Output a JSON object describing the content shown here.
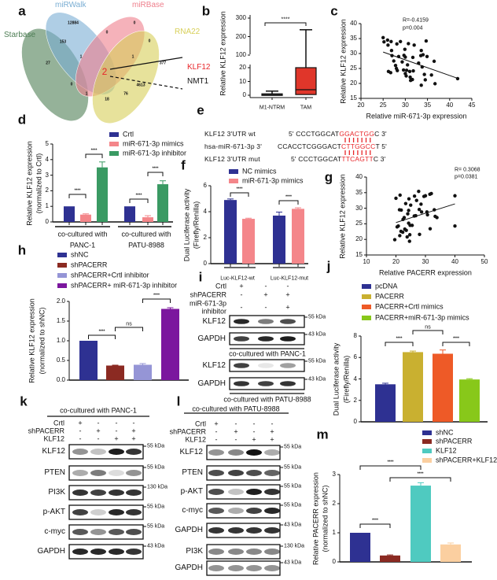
{
  "panel_labels": [
    "a",
    "b",
    "c",
    "d",
    "e",
    "f",
    "g",
    "h",
    "i",
    "j",
    "k",
    "l",
    "m"
  ],
  "venn": {
    "sets": [
      {
        "name": "Starbase",
        "color": "#4e7e55"
      },
      {
        "name": "miRWalk",
        "color": "#7aaed3"
      },
      {
        "name": "miRBase",
        "color": "#ee7f8c"
      },
      {
        "name": "RNA22",
        "color": "#d7cf58"
      }
    ],
    "regions": [
      "12884",
      "0",
      "0",
      "153",
      "0",
      "27",
      "1",
      "1",
      "2",
      "377",
      "0",
      "4613",
      "1",
      "76",
      "18"
    ],
    "callouts": [
      "KLF12",
      "NMT1"
    ]
  },
  "sequences": {
    "rows": [
      {
        "label": "KLF12 3'UTR wt",
        "prefix": "5' CCCTGGCAT",
        "site": "GGACTGG",
        "suffix": "C 3'"
      },
      {
        "label": "hsa-miR-671-3p  3'",
        "prefix": "CCACCTCGGGACT",
        "site": "CTTGGCC",
        "suffix": "T 5'"
      },
      {
        "label": "KLF12 3'UTR mut",
        "prefix": "5' CCCTGGCAT",
        "site": "TTCAGTT",
        "suffix": "C 3'"
      }
    ]
  },
  "chart_data": [
    {
      "panel": "b",
      "type": "box",
      "categories": [
        "M1-NTRM",
        "TAM"
      ],
      "ylabel": "Relative KLF12 expression",
      "yticks": [
        0,
        10,
        20,
        100,
        200,
        300
      ],
      "ylim": [
        0,
        300
      ],
      "axis_break": [
        20,
        100
      ],
      "boxes": [
        {
          "min": 0,
          "q1": 0,
          "median": 0.5,
          "q3": 1,
          "max": 3
        },
        {
          "min": 0,
          "q1": 0.5,
          "median": 4,
          "q3": 20,
          "max": 237
        }
      ],
      "colors": [
        "#ffffff",
        "#e0362a"
      ],
      "significance": "****"
    },
    {
      "panel": "c",
      "type": "scatter",
      "xlabel": "Relative miR-671-3p expression",
      "ylabel": "Relative KLF12 expression",
      "xlim": [
        20,
        45
      ],
      "ylim": [
        15,
        40
      ],
      "xticks": [
        20,
        25,
        30,
        35,
        40,
        45
      ],
      "yticks": [
        15,
        20,
        25,
        30,
        35,
        40
      ],
      "annotation": [
        "R=-0.4159",
        "p=0.004"
      ],
      "fit": [
        [
          25,
          30.5
        ],
        [
          42,
          21.6
        ]
      ],
      "points": [
        [
          25,
          35.3
        ],
        [
          25.2,
          33.9
        ],
        [
          26,
          34.5
        ],
        [
          26.1,
          32.8
        ],
        [
          26.8,
          34
        ],
        [
          26.9,
          31
        ],
        [
          27,
          29.3
        ],
        [
          27.4,
          27.5
        ],
        [
          27.8,
          26
        ],
        [
          28,
          25
        ],
        [
          28.2,
          24.3
        ],
        [
          28.1,
          33.2
        ],
        [
          28.5,
          29
        ],
        [
          28.9,
          34
        ],
        [
          29.3,
          27.2
        ],
        [
          29.6,
          24.5
        ],
        [
          29.7,
          29.4
        ],
        [
          29.9,
          31.4
        ],
        [
          30,
          28.8
        ],
        [
          30,
          23.3
        ],
        [
          30.2,
          22.5
        ],
        [
          30.3,
          24.4
        ],
        [
          30.5,
          26.2
        ],
        [
          30.7,
          33.3
        ],
        [
          31,
          24
        ],
        [
          31.1,
          22.1
        ],
        [
          31.2,
          21
        ],
        [
          31.6,
          21.3
        ],
        [
          31.7,
          28.7
        ],
        [
          31.8,
          24.2
        ],
        [
          32,
          32.8
        ],
        [
          33,
          26.8
        ],
        [
          33.5,
          29.3
        ],
        [
          33.6,
          31
        ],
        [
          33.8,
          25.5
        ],
        [
          33.6,
          19.4
        ],
        [
          34,
          29.6
        ],
        [
          34.3,
          23
        ],
        [
          34.5,
          21.2
        ],
        [
          34.7,
          34.2
        ],
        [
          34.9,
          29
        ],
        [
          35.9,
          22.8
        ],
        [
          36.5,
          27.4
        ],
        [
          36.7,
          19.9
        ],
        [
          26.2,
          24
        ],
        [
          26.7,
          23.6
        ],
        [
          41.8,
          21.6
        ]
      ]
    },
    {
      "panel": "d",
      "type": "bar",
      "ylabel": [
        "Relative KLF12 expression",
        "(normalized to Crtl)"
      ],
      "categories": [
        [
          "co-cultured with",
          "PANC-1"
        ],
        [
          "co-cultured with",
          "PATU-8988"
        ]
      ],
      "yticks": [
        0,
        1,
        2,
        3,
        4,
        5
      ],
      "ylim": [
        0,
        5
      ],
      "series": [
        {
          "name": "Crtl",
          "color": "#2e3192",
          "values": [
            1,
            1
          ],
          "errors": [
            0,
            0
          ]
        },
        {
          "name": "miR-671-3p mimics",
          "color": "#f4868a",
          "values": [
            0.47,
            0.3
          ],
          "errors": [
            0.05,
            0.1
          ]
        },
        {
          "name": "miR-671-3p inhibitor",
          "color": "#3a9a63",
          "values": [
            3.5,
            2.42
          ],
          "errors": [
            0.35,
            0.22
          ]
        }
      ],
      "comparisons": [
        {
          "bars": [
            0,
            1
          ],
          "label": "****"
        },
        {
          "bars": [
            1,
            2
          ],
          "label": "****"
        },
        {
          "bars": [
            3,
            4
          ],
          "label": "****"
        },
        {
          "bars": [
            4,
            5
          ],
          "label": "****"
        }
      ]
    },
    {
      "panel": "f",
      "type": "bar",
      "ylabel": [
        "Dual Luciferase activity",
        "(Firefly/Renilla)"
      ],
      "categories": [
        "Luc-KLF12-wt",
        "Luc-KLF12-mut"
      ],
      "yticks": [
        0,
        2,
        4,
        6
      ],
      "ylim": [
        0,
        6
      ],
      "series": [
        {
          "name": "NC mimics",
          "color": "#2e3192",
          "values": [
            4.9,
            3.7
          ],
          "errors": [
            0.08,
            0.27
          ]
        },
        {
          "name": "miR-671-3p mimics",
          "color": "#f4868a",
          "values": [
            3.45,
            4.22
          ],
          "errors": [
            0.05,
            0.08
          ]
        }
      ],
      "comparisons": [
        {
          "bars": [
            0,
            1
          ],
          "label": "****"
        },
        {
          "bars": [
            2,
            3
          ],
          "label": "****"
        }
      ]
    },
    {
      "panel": "g",
      "type": "scatter",
      "xlabel": "Relative PACERR expression",
      "ylabel": "Relative KLF12 expression",
      "xlim": [
        10,
        50
      ],
      "ylim": [
        15,
        40
      ],
      "xticks": [
        10,
        20,
        30,
        40,
        50
      ],
      "yticks": [
        15,
        20,
        25,
        30,
        35,
        40
      ],
      "annotation": [
        "R= 0.3068",
        "p=0.0381"
      ],
      "fit": [
        [
          20,
          25.4
        ],
        [
          40,
          31.4
        ]
      ],
      "points": [
        [
          19.6,
          19.9
        ],
        [
          20,
          33.2
        ],
        [
          20.4,
          24
        ],
        [
          20.8,
          24.3
        ],
        [
          21.2,
          29.5
        ],
        [
          21.3,
          21.2
        ],
        [
          21.4,
          34.2
        ],
        [
          21.7,
          22.6
        ],
        [
          21.8,
          29.4
        ],
        [
          22.3,
          22.3
        ],
        [
          22.4,
          26.4
        ],
        [
          22.8,
          27
        ],
        [
          23,
          23.3
        ],
        [
          23.3,
          31.5
        ],
        [
          23.5,
          22.9
        ],
        [
          23.8,
          20.8
        ],
        [
          24,
          28.2
        ],
        [
          24.3,
          25.2
        ],
        [
          24.3,
          29.3
        ],
        [
          24.4,
          33
        ],
        [
          24.6,
          19.4
        ],
        [
          24.7,
          21.5
        ],
        [
          24.8,
          24.5
        ],
        [
          25,
          31
        ],
        [
          25.5,
          24.5
        ],
        [
          26.3,
          33.9
        ],
        [
          26.7,
          27.6
        ],
        [
          27,
          32.5
        ],
        [
          27.7,
          35.4
        ],
        [
          27.9,
          29.6
        ],
        [
          28,
          21.6
        ],
        [
          28.5,
          31.3
        ],
        [
          28.7,
          28.8
        ],
        [
          29.5,
          33.8
        ],
        [
          30,
          34
        ],
        [
          30.7,
          27.9
        ],
        [
          31.5,
          34.5
        ],
        [
          31.6,
          23.4
        ],
        [
          32,
          34.7
        ],
        [
          33,
          29.5
        ],
        [
          33.3,
          27.4
        ],
        [
          33.9,
          27
        ],
        [
          40,
          34
        ],
        [
          40,
          24.3
        ],
        [
          30.5,
          28.8
        ],
        [
          26.2,
          27.5
        ]
      ]
    },
    {
      "panel": "h",
      "type": "bar",
      "ylabel": [
        "Relative KLF12 expression",
        "(normalized to shNC)"
      ],
      "yticks": [
        "0.0",
        "0.5",
        "1.0",
        "1.5",
        "2.0"
      ],
      "ylim": [
        0,
        2
      ],
      "categories": [
        "shNC",
        "shPACERR",
        "shPACERR+Crtl inhibitor",
        "shPACERR+ miR-671-3p inhibitor"
      ],
      "values": [
        1.0,
        0.37,
        0.39,
        1.81
      ],
      "errors": [
        0,
        0.01,
        0.03,
        0.03
      ],
      "colors": [
        "#2e3192",
        "#8b2a22",
        "#9595d6",
        "#7b169e"
      ],
      "comparisons": [
        {
          "bars": [
            0,
            1
          ],
          "label": "****"
        },
        {
          "bars": [
            1,
            2
          ],
          "label": "ns"
        },
        {
          "bars": [
            2,
            3
          ],
          "label": "****"
        }
      ]
    },
    {
      "panel": "j",
      "type": "bar",
      "ylabel": [
        "Dual Luciferase activity",
        "(Firefly/Renilla)"
      ],
      "yticks": [
        0,
        2,
        4,
        6,
        8
      ],
      "ylim": [
        0,
        8
      ],
      "categories": [
        "pcDNA",
        "PACERR",
        "PACERR+Crtl mimics",
        "PACERR+miR-671-3p mimics"
      ],
      "values": [
        3.5,
        6.5,
        6.35,
        3.95
      ],
      "errors": [
        0.1,
        0.1,
        0.35,
        0.07
      ],
      "colors": [
        "#2e3192",
        "#c9b030",
        "#ee5a27",
        "#88c81a"
      ],
      "comparisons": [
        {
          "bars": [
            0,
            1
          ],
          "label": "****"
        },
        {
          "bars": [
            1,
            2
          ],
          "label": "ns"
        },
        {
          "bars": [
            2,
            3
          ],
          "label": "****"
        }
      ]
    },
    {
      "panel": "m",
      "type": "bar",
      "ylabel": [
        "Relative PACERR expression",
        "(normalized to shNC)"
      ],
      "yticks": [
        0,
        1,
        2,
        3
      ],
      "ylim": [
        0,
        3
      ],
      "categories": [
        "shNC",
        "shPACERR",
        "KLF12",
        "shPACERR+KLF12"
      ],
      "values": [
        1.0,
        0.22,
        2.62,
        0.6
      ],
      "errors": [
        0,
        0.02,
        0.1,
        0.05
      ],
      "colors": [
        "#2e3192",
        "#8b2a22",
        "#4fcac0",
        "#fbcfa0"
      ],
      "comparisons": [
        {
          "bars": [
            0,
            1
          ],
          "label": "****"
        },
        {
          "bars": [
            0,
            2
          ],
          "label": "****"
        },
        {
          "bars": [
            1,
            3
          ],
          "label": "****"
        }
      ]
    }
  ],
  "blots": {
    "i": {
      "conditions": [
        {
          "name": "Crtl",
          "signs": [
            "+",
            "-",
            "-"
          ]
        },
        {
          "name": "shPACERR",
          "signs": [
            "-",
            "+",
            "+"
          ]
        },
        {
          "name": "miR-671-3p",
          "name2": "inhibitor",
          "signs": [
            "-",
            "-",
            "+"
          ]
        }
      ],
      "sections": [
        {
          "caption": "co-cultured with PANC-1",
          "rows": [
            {
              "label": "KLF12",
              "kda": "55 kDa",
              "intensity": [
                0.9,
                0.55,
                0.75
              ]
            },
            {
              "label": "GAPDH",
              "kda": "43 kDa",
              "intensity": [
                0.8,
                0.9,
                0.95
              ]
            }
          ]
        },
        {
          "caption": "co-cultured with PATU-8988",
          "rows": [
            {
              "label": "KLF12",
              "kda": "55 kDa",
              "intensity": [
                0.8,
                0.1,
                0.4
              ]
            },
            {
              "label": "GAPDH",
              "kda": "43 kDa",
              "intensity": [
                0.85,
                0.8,
                0.85
              ]
            }
          ]
        }
      ]
    },
    "k": {
      "title": "co-cultured with PANC-1",
      "conditions": [
        {
          "name": "Crtl",
          "signs": [
            "+",
            "-",
            "-",
            "-"
          ]
        },
        {
          "name": "shPACERR",
          "signs": [
            "-",
            "+",
            "-",
            "+"
          ]
        },
        {
          "name": "KLF12",
          "signs": [
            "-",
            "-",
            "+",
            "+"
          ]
        }
      ],
      "rows": [
        {
          "label": "KLF12",
          "kda": "55 kDa",
          "intensity": [
            0.45,
            0.25,
            0.95,
            0.85
          ]
        },
        {
          "label": "PTEN",
          "kda": "55 kDa",
          "intensity": [
            0.35,
            0.55,
            0.15,
            0.45
          ]
        },
        {
          "label": "PI3K",
          "kda": "130 kDa",
          "intensity": [
            0.85,
            0.8,
            0.85,
            0.85
          ]
        },
        {
          "label": "p-AKT",
          "kda": "55 kDa",
          "intensity": [
            0.8,
            0.2,
            0.9,
            0.85
          ]
        },
        {
          "label": "c-myc",
          "kda": "55 kDa",
          "intensity": [
            0.7,
            0.45,
            0.7,
            0.75
          ]
        },
        {
          "label": "GAPDH",
          "kda": "43 kDa",
          "intensity": [
            0.9,
            0.9,
            0.9,
            0.85
          ]
        }
      ]
    },
    "l": {
      "title": "co-cultured with PATU-8988",
      "conditions": [
        {
          "name": "Crtl",
          "signs": [
            "+",
            "-",
            "-",
            "-"
          ]
        },
        {
          "name": "shPACERR",
          "signs": [
            "-",
            "+",
            "-",
            "+"
          ]
        },
        {
          "name": "KLF12",
          "signs": [
            "-",
            "-",
            "+",
            "+"
          ]
        }
      ],
      "rows": [
        {
          "label": "KLF12",
          "kda": "55 kDa",
          "intensity": [
            0.45,
            0.5,
            1.0,
            0.35
          ]
        },
        {
          "label": "PTEN",
          "kda": "55 kDa",
          "intensity": [
            0.75,
            0.8,
            0.75,
            0.65
          ]
        },
        {
          "label": "p-AKT",
          "kda": "55 kDa",
          "intensity": [
            0.75,
            0.25,
            0.95,
            0.85
          ]
        },
        {
          "label": "c-myc",
          "kda": "55 kDa",
          "intensity": [
            0.7,
            0.35,
            0.8,
            0.9
          ]
        },
        {
          "label": "GAPDH",
          "kda": "43 kDa",
          "intensity": [
            0.85,
            0.85,
            0.85,
            0.85
          ]
        },
        {
          "label": "PI3K",
          "kda": "130 kDa",
          "intensity": [
            0.5,
            0.5,
            0.5,
            0.5
          ]
        },
        {
          "label": "GAPDH",
          "kda": "43 kDa",
          "intensity": [
            0.45,
            0.45,
            0.45,
            0.45
          ]
        }
      ]
    }
  }
}
